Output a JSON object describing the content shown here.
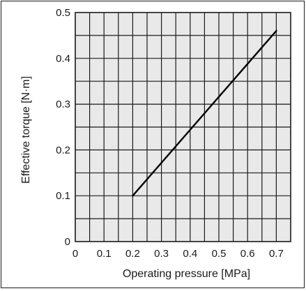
{
  "chart_data": {
    "type": "line",
    "xlabel": "Operating pressure [MPa]",
    "ylabel": "Effective torque [N·m]",
    "xlim": [
      0,
      0.75
    ],
    "ylim": [
      0,
      0.5
    ],
    "x_ticks": [
      "0",
      "0.1",
      "0.2",
      "0.3",
      "0.4",
      "0.5",
      "0.6",
      "0.7"
    ],
    "y_ticks": [
      "0",
      "0.1",
      "0.2",
      "0.3",
      "0.4",
      "0.5"
    ],
    "x_tick_values": [
      0,
      0.1,
      0.2,
      0.3,
      0.4,
      0.5,
      0.6,
      0.7
    ],
    "y_tick_values": [
      0,
      0.1,
      0.2,
      0.3,
      0.4,
      0.5
    ],
    "x_grid_step": 0.05,
    "y_grid_step": 0.05,
    "grid": true,
    "series": [
      {
        "x": [
          0.2,
          0.7
        ],
        "y": [
          0.1,
          0.46
        ]
      }
    ],
    "colors": {
      "plot_background": "#e9e9e9",
      "grid": "#1a1a1a",
      "line": "#000000"
    }
  }
}
